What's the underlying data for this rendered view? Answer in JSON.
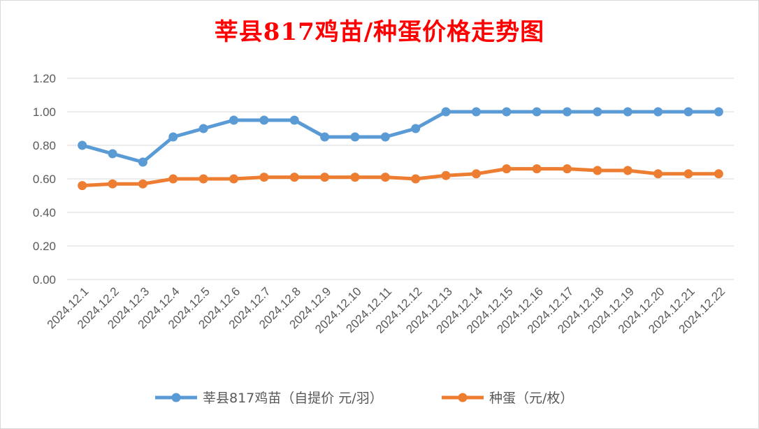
{
  "chart_data": {
    "type": "line",
    "title": "莘县817鸡苗/种蛋价格走势图",
    "xlabel": "",
    "ylabel": "",
    "categories": [
      "2024.12.1",
      "2024.12.2",
      "2024.12.3",
      "2024.12.4",
      "2024.12.5",
      "2024.12.6",
      "2024.12.7",
      "2024.12.8",
      "2024.12.9",
      "2024.12.10",
      "2024.12.11",
      "2024.12.12",
      "2024.12.13",
      "2024.12.14",
      "2024.12.15",
      "2024.12.16",
      "2024.12.17",
      "2024.12.18",
      "2024.12.19",
      "2024.12.20",
      "2024.12.21",
      "2024.12.22"
    ],
    "ylim": [
      0,
      1.2
    ],
    "yticks": [
      "0.00",
      "0.20",
      "0.40",
      "0.60",
      "0.80",
      "1.00",
      "1.20"
    ],
    "grid": true,
    "legend_position": "bottom",
    "series": [
      {
        "name": "莘县817鸡苗（自提价 元/羽）",
        "color": "#5b9bd5",
        "values": [
          0.8,
          0.75,
          0.7,
          0.85,
          0.9,
          0.95,
          0.95,
          0.95,
          0.85,
          0.85,
          0.85,
          0.9,
          1.0,
          1.0,
          1.0,
          1.0,
          1.0,
          1.0,
          1.0,
          1.0,
          1.0,
          1.0
        ]
      },
      {
        "name": "种蛋（元/枚）",
        "color": "#ed7d31",
        "values": [
          0.56,
          0.57,
          0.57,
          0.6,
          0.6,
          0.6,
          0.61,
          0.61,
          0.61,
          0.61,
          0.61,
          0.6,
          0.62,
          0.63,
          0.66,
          0.66,
          0.66,
          0.65,
          0.65,
          0.63,
          0.63,
          0.63
        ]
      }
    ]
  }
}
